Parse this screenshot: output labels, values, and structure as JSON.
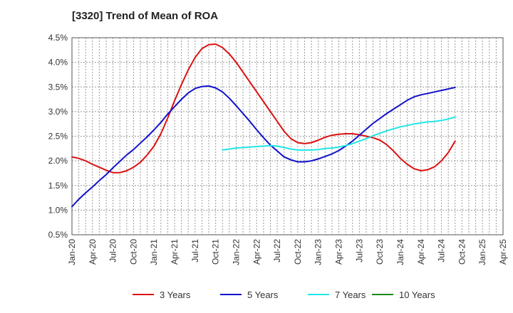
{
  "chart_data": {
    "type": "line",
    "title": "[3320]  Trend of Mean of ROA",
    "xlabel": "",
    "ylabel": "",
    "ylim": [
      0.5,
      4.5
    ],
    "y_ticks": [
      "0.5%",
      "1.0%",
      "1.5%",
      "2.0%",
      "2.5%",
      "3.0%",
      "3.5%",
      "4.0%",
      "4.5%"
    ],
    "x_ticks": [
      "Jan-20",
      "Apr-20",
      "Jul-20",
      "Oct-20",
      "Jan-21",
      "Apr-21",
      "Jul-21",
      "Oct-21",
      "Jan-22",
      "Apr-22",
      "Jul-22",
      "Oct-22",
      "Jan-23",
      "Apr-23",
      "Jul-23",
      "Oct-23",
      "Jan-24",
      "Apr-24",
      "Jul-24",
      "Oct-24",
      "Jan-25",
      "Apr-25"
    ],
    "x_range_months": [
      0,
      63
    ],
    "grid": true,
    "legend_position": "bottom",
    "series": [
      {
        "name": "3 Years",
        "color": "#dd1111",
        "points": [
          [
            0,
            2.08
          ],
          [
            1,
            2.05
          ],
          [
            2,
            2.0
          ],
          [
            3,
            1.93
          ],
          [
            4,
            1.87
          ],
          [
            5,
            1.81
          ],
          [
            6,
            1.76
          ],
          [
            7,
            1.76
          ],
          [
            8,
            1.8
          ],
          [
            9,
            1.87
          ],
          [
            10,
            1.97
          ],
          [
            11,
            2.12
          ],
          [
            12,
            2.3
          ],
          [
            13,
            2.55
          ],
          [
            14,
            2.87
          ],
          [
            15,
            3.22
          ],
          [
            16,
            3.55
          ],
          [
            17,
            3.85
          ],
          [
            18,
            4.1
          ],
          [
            19,
            4.28
          ],
          [
            20,
            4.36
          ],
          [
            21,
            4.37
          ],
          [
            22,
            4.3
          ],
          [
            23,
            4.17
          ],
          [
            24,
            4.0
          ],
          [
            25,
            3.8
          ],
          [
            26,
            3.6
          ],
          [
            27,
            3.4
          ],
          [
            28,
            3.2
          ],
          [
            29,
            3.0
          ],
          [
            30,
            2.8
          ],
          [
            31,
            2.6
          ],
          [
            32,
            2.45
          ],
          [
            33,
            2.37
          ],
          [
            34,
            2.35
          ],
          [
            35,
            2.37
          ],
          [
            36,
            2.42
          ],
          [
            37,
            2.48
          ],
          [
            38,
            2.52
          ],
          [
            39,
            2.54
          ],
          [
            40,
            2.55
          ],
          [
            41,
            2.55
          ],
          [
            42,
            2.53
          ],
          [
            43,
            2.5
          ],
          [
            44,
            2.47
          ],
          [
            45,
            2.42
          ],
          [
            46,
            2.33
          ],
          [
            47,
            2.2
          ],
          [
            48,
            2.05
          ],
          [
            49,
            1.93
          ],
          [
            50,
            1.84
          ],
          [
            51,
            1.8
          ],
          [
            52,
            1.82
          ],
          [
            53,
            1.88
          ],
          [
            54,
            2.0
          ],
          [
            55,
            2.17
          ],
          [
            56,
            2.4
          ]
        ]
      },
      {
        "name": "5 Years",
        "color": "#1111cc",
        "points": [
          [
            0,
            1.07
          ],
          [
            1,
            1.22
          ],
          [
            2,
            1.35
          ],
          [
            3,
            1.47
          ],
          [
            4,
            1.6
          ],
          [
            5,
            1.72
          ],
          [
            6,
            1.86
          ],
          [
            7,
            1.99
          ],
          [
            8,
            2.12
          ],
          [
            9,
            2.23
          ],
          [
            10,
            2.36
          ],
          [
            11,
            2.49
          ],
          [
            12,
            2.63
          ],
          [
            13,
            2.78
          ],
          [
            14,
            2.95
          ],
          [
            15,
            3.1
          ],
          [
            16,
            3.25
          ],
          [
            17,
            3.38
          ],
          [
            18,
            3.47
          ],
          [
            19,
            3.51
          ],
          [
            20,
            3.52
          ],
          [
            21,
            3.48
          ],
          [
            22,
            3.4
          ],
          [
            23,
            3.27
          ],
          [
            24,
            3.12
          ],
          [
            25,
            2.96
          ],
          [
            26,
            2.8
          ],
          [
            27,
            2.63
          ],
          [
            28,
            2.47
          ],
          [
            29,
            2.32
          ],
          [
            30,
            2.2
          ],
          [
            31,
            2.08
          ],
          [
            32,
            2.02
          ],
          [
            33,
            1.98
          ],
          [
            34,
            1.98
          ],
          [
            35,
            2.0
          ],
          [
            36,
            2.04
          ],
          [
            37,
            2.09
          ],
          [
            38,
            2.14
          ],
          [
            39,
            2.21
          ],
          [
            40,
            2.3
          ],
          [
            41,
            2.4
          ],
          [
            42,
            2.52
          ],
          [
            43,
            2.64
          ],
          [
            44,
            2.76
          ],
          [
            45,
            2.86
          ],
          [
            46,
            2.96
          ],
          [
            47,
            3.05
          ],
          [
            48,
            3.14
          ],
          [
            49,
            3.23
          ],
          [
            50,
            3.3
          ],
          [
            51,
            3.34
          ],
          [
            52,
            3.37
          ],
          [
            53,
            3.4
          ],
          [
            54,
            3.43
          ],
          [
            55,
            3.46
          ],
          [
            56,
            3.49
          ]
        ]
      },
      {
        "name": "7 Years",
        "color": "#22e5e5",
        "points": [
          [
            22,
            2.22
          ],
          [
            23,
            2.24
          ],
          [
            24,
            2.26
          ],
          [
            25,
            2.27
          ],
          [
            26,
            2.28
          ],
          [
            27,
            2.29
          ],
          [
            28,
            2.3
          ],
          [
            29,
            2.31
          ],
          [
            30,
            2.3
          ],
          [
            31,
            2.27
          ],
          [
            32,
            2.24
          ],
          [
            33,
            2.22
          ],
          [
            34,
            2.22
          ],
          [
            35,
            2.22
          ],
          [
            36,
            2.23
          ],
          [
            37,
            2.25
          ],
          [
            38,
            2.26
          ],
          [
            39,
            2.28
          ],
          [
            40,
            2.31
          ],
          [
            41,
            2.35
          ],
          [
            42,
            2.4
          ],
          [
            43,
            2.45
          ],
          [
            44,
            2.51
          ],
          [
            45,
            2.56
          ],
          [
            46,
            2.61
          ],
          [
            47,
            2.65
          ],
          [
            48,
            2.69
          ],
          [
            49,
            2.72
          ],
          [
            50,
            2.75
          ],
          [
            51,
            2.77
          ],
          [
            52,
            2.79
          ],
          [
            53,
            2.8
          ],
          [
            54,
            2.82
          ],
          [
            55,
            2.85
          ],
          [
            56,
            2.89
          ]
        ]
      },
      {
        "name": "10 Years",
        "color": "#1a8a1a",
        "points": []
      }
    ]
  }
}
